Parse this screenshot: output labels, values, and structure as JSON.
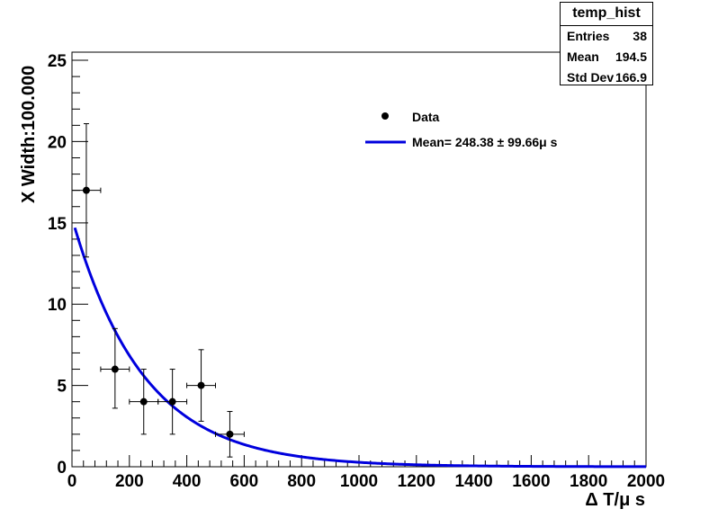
{
  "chart_data": {
    "type": "scatter",
    "xlabel": "Δ T/μ s",
    "ylabel": "X Width:100.000",
    "xlim": [
      0,
      2000
    ],
    "ylim": [
      0,
      25.5
    ],
    "xticks": [
      0,
      200,
      400,
      600,
      800,
      1000,
      1200,
      1400,
      1600,
      1800,
      2000
    ],
    "yticks": [
      0,
      5,
      10,
      15,
      20,
      25
    ],
    "grid": false,
    "legend_position": "upper-right inside plot",
    "series": [
      {
        "name": "Data",
        "kind": "points_with_errors",
        "color": "#000000",
        "x": [
          50,
          150,
          250,
          350,
          450,
          550
        ],
        "y": [
          17,
          6,
          4,
          4,
          5,
          2
        ],
        "xerr": [
          50,
          50,
          50,
          50,
          50,
          50
        ],
        "yerr_low": [
          4.1,
          2.4,
          2.0,
          2.0,
          2.2,
          1.4
        ],
        "yerr_high": [
          4.1,
          2.5,
          2.0,
          2.0,
          2.2,
          1.4
        ]
      },
      {
        "name": "Mean= 248.38  ± 99.66μ s",
        "kind": "fit_curve",
        "function": "exponential",
        "color": "#0000dd",
        "amplitude": 14.7,
        "tau": 248.38,
        "x_start": 10,
        "x_end": 2000
      }
    ]
  },
  "stats": {
    "title": "temp_hist",
    "rows": [
      {
        "label": "Entries",
        "value": "38"
      },
      {
        "label": "Mean",
        "value": "194.5"
      },
      {
        "label": "Std Dev",
        "value": "166.9"
      }
    ]
  }
}
